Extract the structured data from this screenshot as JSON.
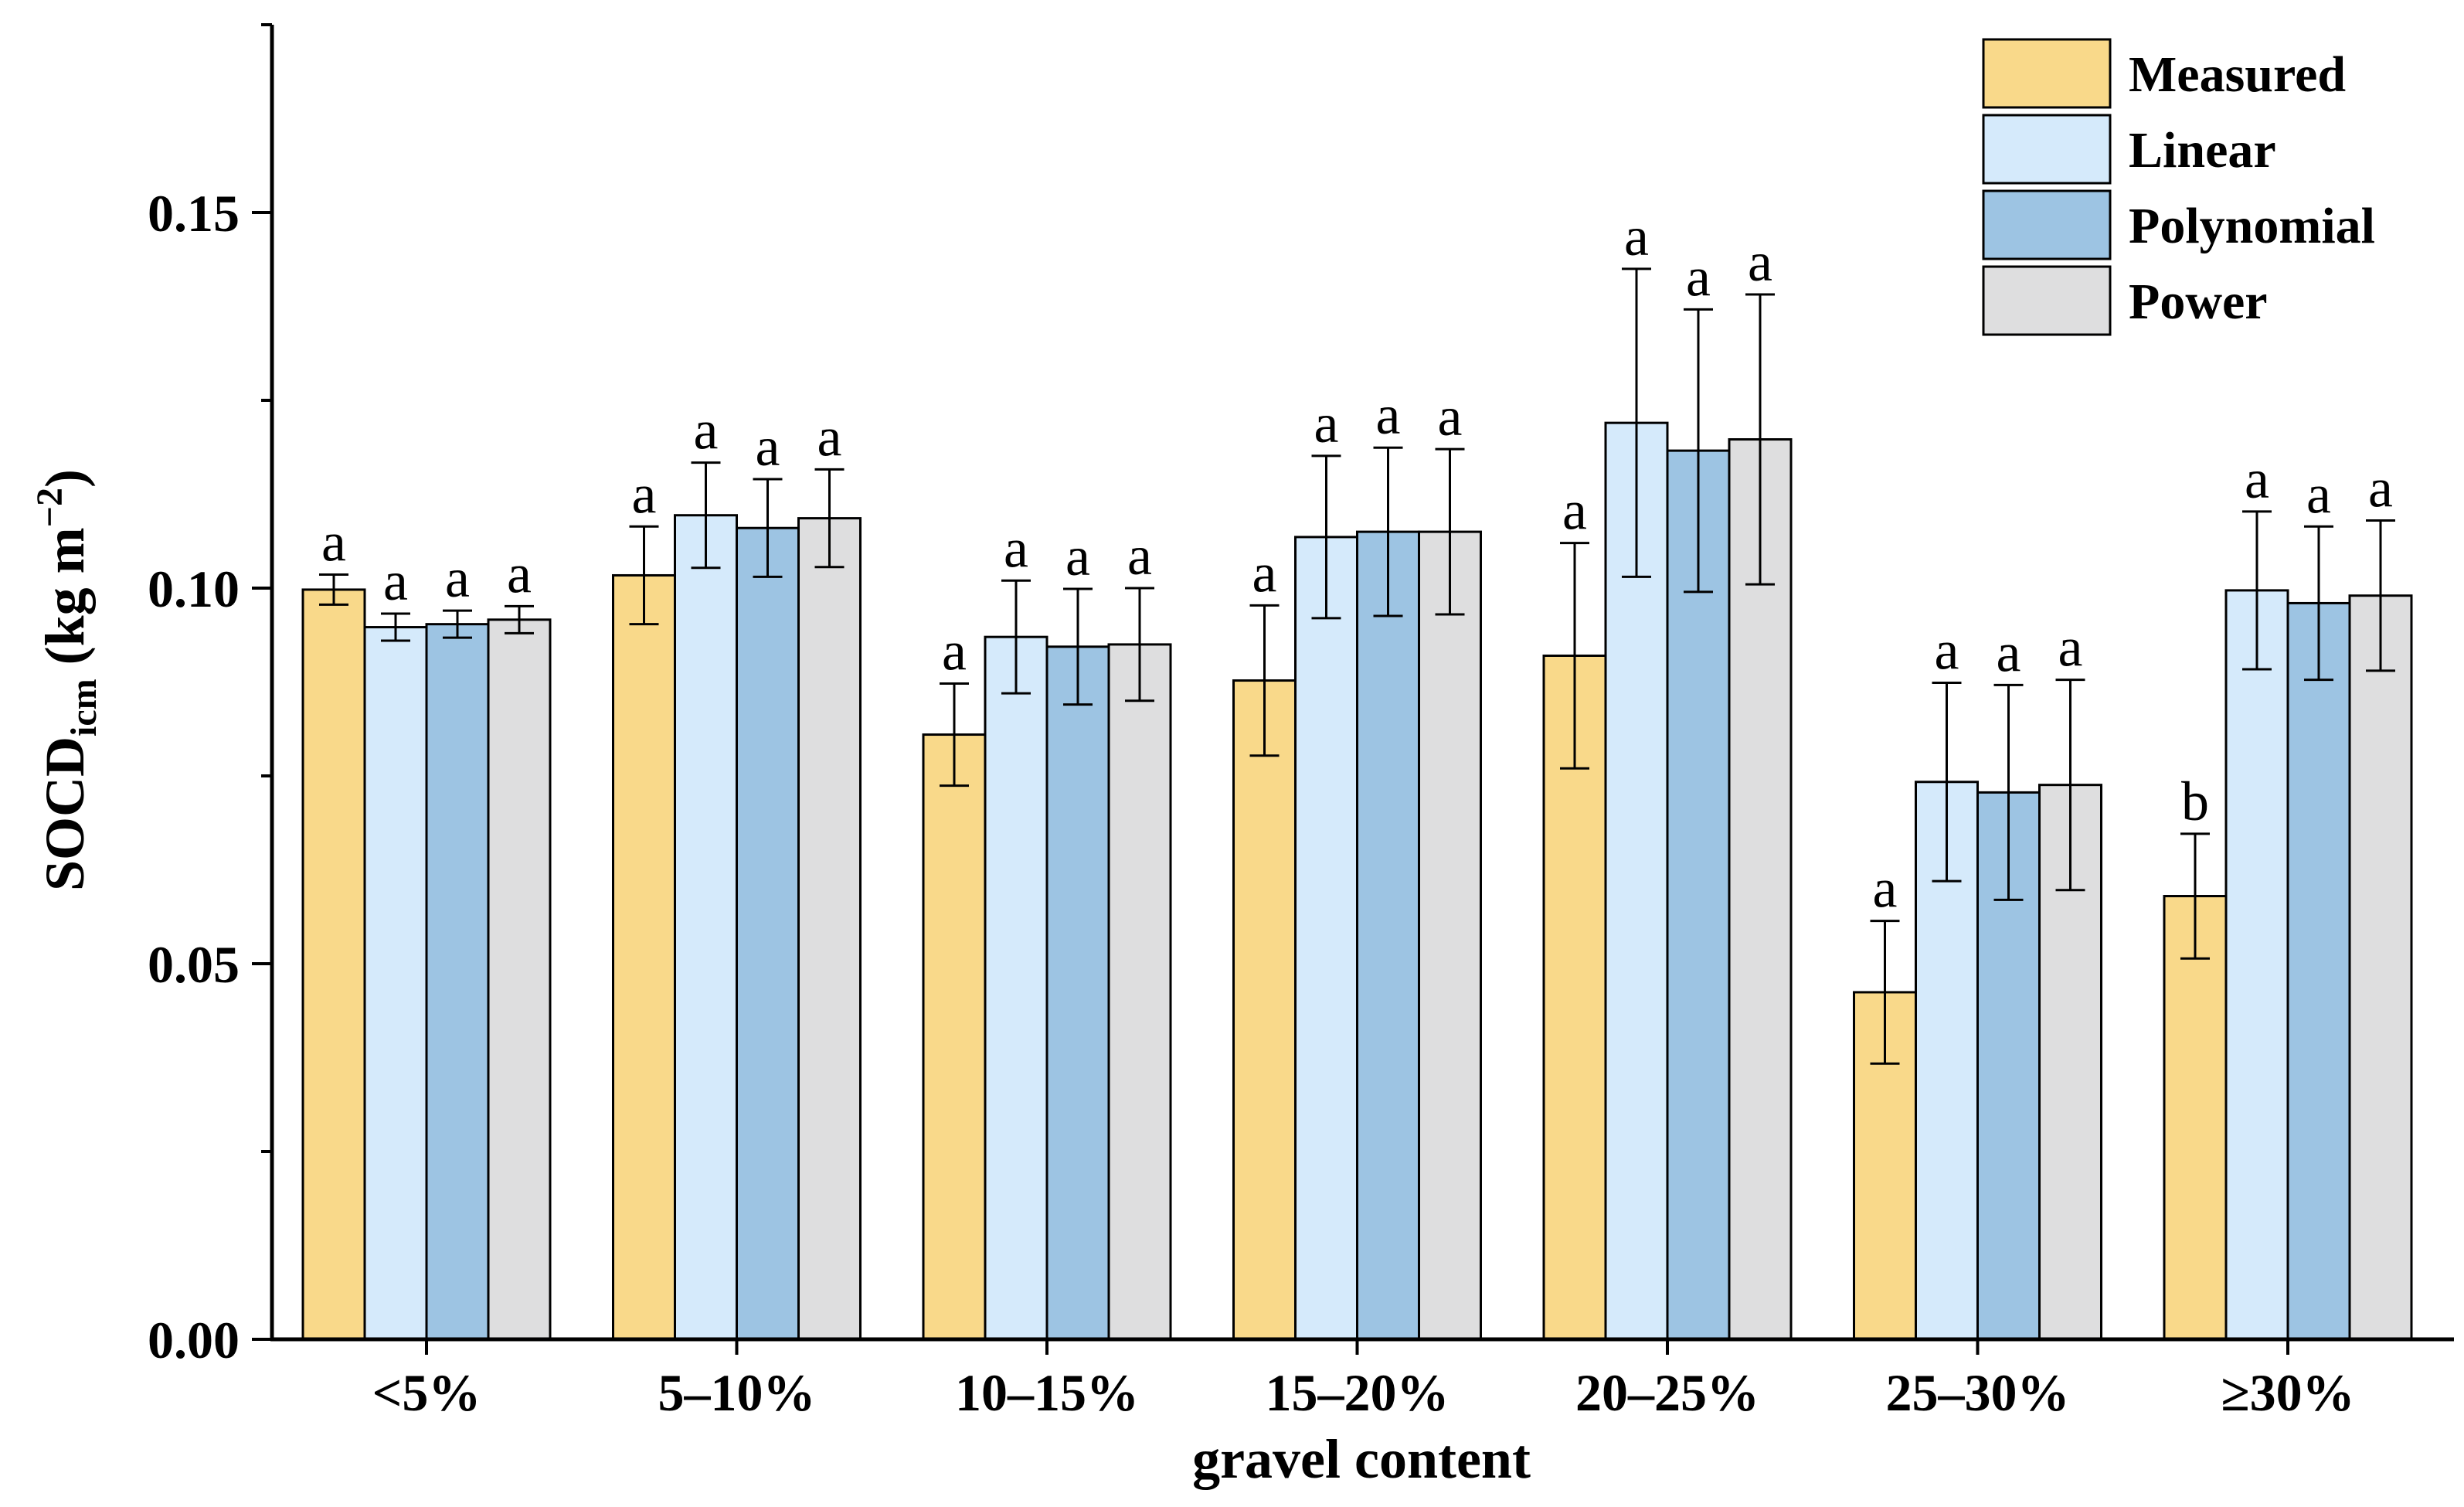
{
  "chart_data": {
    "type": "bar",
    "xlabel": "gravel content",
    "ylabel_main": "SOCD",
    "ylabel_sub": "icm",
    "ylabel_unit_open": " (kg m",
    "ylabel_unit_sup": "−2",
    "ylabel_unit_close": ")",
    "ylim": [
      0,
      0.175
    ],
    "yticks": [
      {
        "value": 0,
        "label": "0.00"
      },
      {
        "value": 0.05,
        "label": "0.05"
      },
      {
        "value": 0.1,
        "label": "0.10"
      },
      {
        "value": 0.15,
        "label": "0.15"
      }
    ],
    "categories": [
      "<5%",
      "5–10%",
      "10–15%",
      "15–20%",
      "20–25%",
      "25–30%",
      "≥30%"
    ],
    "series": [
      {
        "name": "Measured",
        "color": "#F9D98A",
        "values": [
          0.0998,
          0.1017,
          0.0805,
          0.0877,
          0.091,
          0.0462,
          0.059
        ],
        "errors": [
          0.002,
          0.0065,
          0.0068,
          0.01,
          0.015,
          0.0095,
          0.0083
        ],
        "labels": [
          "a",
          "a",
          "a",
          "a",
          "a",
          "a",
          "b"
        ]
      },
      {
        "name": "Linear",
        "color": "#D5EAFB",
        "values": [
          0.0948,
          0.1097,
          0.0935,
          0.1068,
          0.122,
          0.0742,
          0.0997
        ],
        "errors": [
          0.0018,
          0.007,
          0.0075,
          0.0108,
          0.0205,
          0.0132,
          0.0105
        ],
        "labels": [
          "a",
          "a",
          "a",
          "a",
          "a",
          "a",
          "a"
        ]
      },
      {
        "name": "Polynomial",
        "color": "#9DC4E3",
        "values": [
          0.0952,
          0.108,
          0.0922,
          0.1075,
          0.1183,
          0.0728,
          0.098
        ],
        "errors": [
          0.0018,
          0.0065,
          0.0077,
          0.0112,
          0.0188,
          0.0143,
          0.0102
        ],
        "labels": [
          "a",
          "a",
          "a",
          "a",
          "a",
          "a",
          "a"
        ]
      },
      {
        "name": "Power",
        "color": "#DEDEDF",
        "values": [
          0.0958,
          0.1093,
          0.0925,
          0.1075,
          0.1198,
          0.0738,
          0.099
        ],
        "errors": [
          0.0018,
          0.0065,
          0.0075,
          0.011,
          0.0193,
          0.014,
          0.01
        ],
        "labels": [
          "a",
          "a",
          "a",
          "a",
          "a",
          "a",
          "a"
        ]
      }
    ]
  }
}
